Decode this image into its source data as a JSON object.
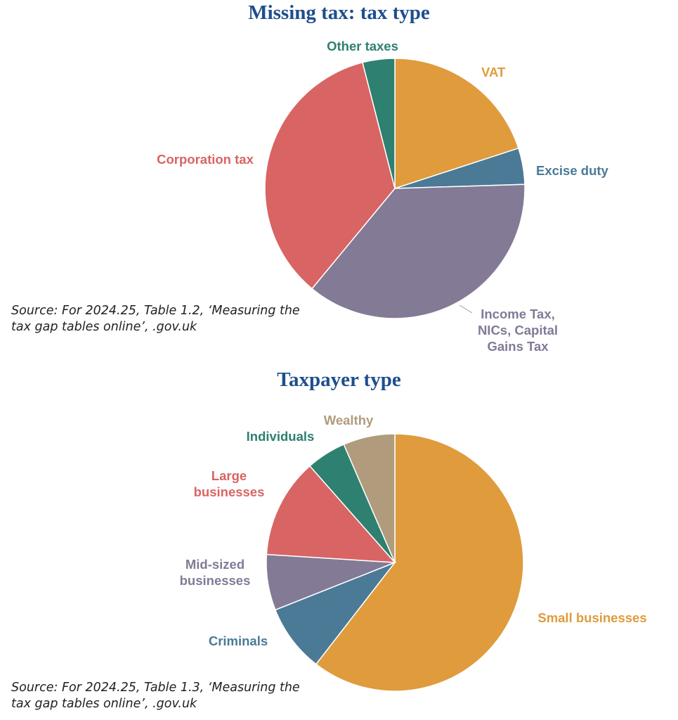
{
  "chart_data": [
    {
      "type": "pie",
      "title": "Missing tax: tax type",
      "slices": [
        {
          "label": "VAT",
          "value": 20.0,
          "color": "#df9b3c"
        },
        {
          "label": "Excise duty",
          "value": 4.5,
          "color": "#4a7a96"
        },
        {
          "label": "Income Tax, NICs, Capital Gains Tax",
          "label_lines": [
            "Income Tax,",
            "NICs, Capital",
            "Gains Tax"
          ],
          "value": 36.5,
          "color": "#837a96"
        },
        {
          "label": "Corporation tax",
          "value": 35.0,
          "color": "#d96464"
        },
        {
          "label": "Other taxes",
          "value": 4.0,
          "color": "#2e8070"
        }
      ],
      "source": "Source: For 2024.25, Table 1.2, ‘Measuring the tax gap tables online’, .gov.uk"
    },
    {
      "type": "pie",
      "title": "Taxpayer type",
      "slices": [
        {
          "label": "Small businesses",
          "value": 60.5,
          "color": "#df9b3c"
        },
        {
          "label": "Criminals",
          "value": 8.5,
          "color": "#4a7a96"
        },
        {
          "label": "Mid-sized businesses",
          "label_lines": [
            "Mid-sized",
            "businesses"
          ],
          "value": 7.0,
          "color": "#837a96"
        },
        {
          "label": "Large businesses",
          "label_lines": [
            "Large",
            "businesses"
          ],
          "value": 12.5,
          "color": "#d96464"
        },
        {
          "label": "Individuals",
          "value": 5.0,
          "color": "#2e8070"
        },
        {
          "label": "Wealthy",
          "value": 6.5,
          "color": "#b09c7c"
        }
      ],
      "source": "Source: For 2024.25, Table 1.3, ‘Measuring the tax gap tables online’, .gov.uk"
    }
  ]
}
